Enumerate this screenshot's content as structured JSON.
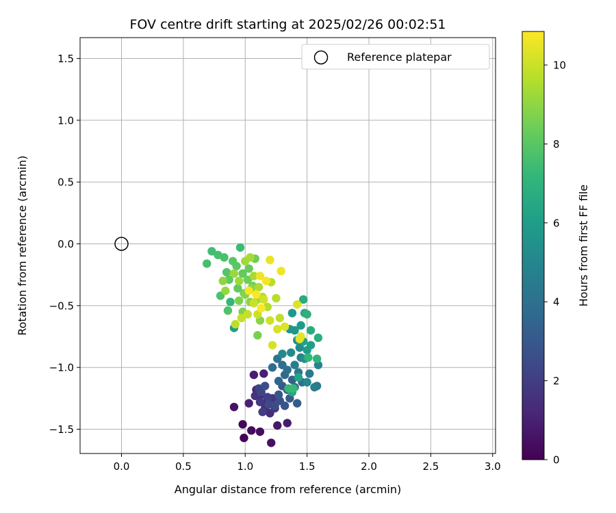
{
  "chart_data": {
    "type": "scatter",
    "title": "FOV centre drift starting at 2025/02/26 00:02:51",
    "xlabel": "Angular distance from reference (arcmin)",
    "ylabel": "Rotation from reference (arcmin)",
    "xlim": [
      -0.33,
      3.03
    ],
    "ylim": [
      -1.7,
      1.67
    ],
    "xticks": [
      "0.0",
      "0.5",
      "1.0",
      "1.5",
      "2.0",
      "2.5",
      "3.0"
    ],
    "yticks": [
      "−1.5",
      "−1.0",
      "−0.5",
      "0.0",
      "0.5",
      "1.0",
      "1.5"
    ],
    "grid": true,
    "legend": {
      "label": "Reference platepar",
      "placement": "top-right"
    },
    "reference_point": {
      "x": 0.0,
      "y": 0.0
    },
    "colorbar": {
      "label": "Hours from first FF file",
      "range": [
        0,
        10.85
      ],
      "ticks": [
        "0",
        "2",
        "4",
        "6",
        "8",
        "10"
      ],
      "colormap": "viridis",
      "colors": [
        "#440154",
        "#482878",
        "#3e4989",
        "#31688e",
        "#26828e",
        "#1f9e89",
        "#35b779",
        "#6ece58",
        "#b5de2b",
        "#fde725"
      ]
    },
    "points": [
      {
        "x": 0.99,
        "y": -1.57,
        "h": 0.1
      },
      {
        "x": 0.98,
        "y": -1.46,
        "h": 0.2
      },
      {
        "x": 1.05,
        "y": -1.51,
        "h": 0.3
      },
      {
        "x": 1.12,
        "y": -1.52,
        "h": 0.4
      },
      {
        "x": 1.21,
        "y": -1.61,
        "h": 0.5
      },
      {
        "x": 0.91,
        "y": -1.32,
        "h": 0.6
      },
      {
        "x": 1.26,
        "y": -1.47,
        "h": 0.7
      },
      {
        "x": 1.34,
        "y": -1.45,
        "h": 0.8
      },
      {
        "x": 1.07,
        "y": -1.06,
        "h": 0.9
      },
      {
        "x": 1.15,
        "y": -1.05,
        "h": 1.0
      },
      {
        "x": 1.03,
        "y": -1.29,
        "h": 1.0
      },
      {
        "x": 1.09,
        "y": -1.18,
        "h": 1.1
      },
      {
        "x": 1.13,
        "y": -1.22,
        "h": 1.2
      },
      {
        "x": 1.17,
        "y": -1.28,
        "h": 1.3
      },
      {
        "x": 1.2,
        "y": -1.37,
        "h": 1.4
      },
      {
        "x": 1.16,
        "y": -1.33,
        "h": 1.5
      },
      {
        "x": 1.08,
        "y": -1.23,
        "h": 1.6
      },
      {
        "x": 1.22,
        "y": -1.25,
        "h": 1.7
      },
      {
        "x": 1.24,
        "y": -1.33,
        "h": 1.8
      },
      {
        "x": 1.12,
        "y": -1.28,
        "h": 1.9
      },
      {
        "x": 1.14,
        "y": -1.36,
        "h": 2.0
      },
      {
        "x": 1.18,
        "y": -1.24,
        "h": 2.1
      },
      {
        "x": 1.11,
        "y": -1.17,
        "h": 2.2
      },
      {
        "x": 1.13,
        "y": -1.2,
        "h": 2.3
      },
      {
        "x": 1.19,
        "y": -1.3,
        "h": 2.4
      },
      {
        "x": 1.24,
        "y": -1.31,
        "h": 2.5
      },
      {
        "x": 1.16,
        "y": -1.15,
        "h": 2.6
      },
      {
        "x": 1.28,
        "y": -1.27,
        "h": 2.7
      },
      {
        "x": 1.32,
        "y": -1.31,
        "h": 2.8
      },
      {
        "x": 1.27,
        "y": -1.22,
        "h": 2.9
      },
      {
        "x": 1.3,
        "y": -1.15,
        "h": 3.0
      },
      {
        "x": 1.36,
        "y": -1.25,
        "h": 3.1
      },
      {
        "x": 1.42,
        "y": -1.29,
        "h": 3.2
      },
      {
        "x": 1.34,
        "y": -1.18,
        "h": 3.3
      },
      {
        "x": 1.38,
        "y": -1.1,
        "h": 3.4
      },
      {
        "x": 1.27,
        "y": -1.11,
        "h": 3.5
      },
      {
        "x": 1.32,
        "y": -1.06,
        "h": 3.6
      },
      {
        "x": 1.4,
        "y": -1.16,
        "h": 3.7
      },
      {
        "x": 1.22,
        "y": -1.0,
        "h": 3.8
      },
      {
        "x": 1.3,
        "y": -0.98,
        "h": 3.9
      },
      {
        "x": 1.34,
        "y": -1.02,
        "h": 4.0
      },
      {
        "x": 1.46,
        "y": -1.12,
        "h": 4.1
      },
      {
        "x": 1.26,
        "y": -0.93,
        "h": 4.2
      },
      {
        "x": 1.43,
        "y": -1.04,
        "h": 4.3
      },
      {
        "x": 1.52,
        "y": -1.05,
        "h": 4.4
      },
      {
        "x": 1.58,
        "y": -1.15,
        "h": 4.5
      },
      {
        "x": 1.56,
        "y": -1.16,
        "h": 4.6
      },
      {
        "x": 1.4,
        "y": -0.98,
        "h": 4.7
      },
      {
        "x": 1.45,
        "y": -0.92,
        "h": 4.8
      },
      {
        "x": 1.59,
        "y": -0.98,
        "h": 4.9
      },
      {
        "x": 1.5,
        "y": -1.12,
        "h": 5.0
      },
      {
        "x": 1.3,
        "y": -0.89,
        "h": 5.1
      },
      {
        "x": 1.37,
        "y": -0.88,
        "h": 5.2
      },
      {
        "x": 1.44,
        "y": -0.84,
        "h": 5.3
      },
      {
        "x": 1.48,
        "y": -0.93,
        "h": 5.4
      },
      {
        "x": 1.42,
        "y": -0.78,
        "h": 5.5
      },
      {
        "x": 1.36,
        "y": -0.69,
        "h": 5.6
      },
      {
        "x": 1.4,
        "y": -0.7,
        "h": 5.7
      },
      {
        "x": 1.38,
        "y": -0.56,
        "h": 5.8
      },
      {
        "x": 1.45,
        "y": -0.66,
        "h": 5.9
      },
      {
        "x": 1.5,
        "y": -0.86,
        "h": 6.0
      },
      {
        "x": 1.53,
        "y": -0.82,
        "h": 6.1
      },
      {
        "x": 1.47,
        "y": -0.79,
        "h": 6.2
      },
      {
        "x": 1.43,
        "y": -1.08,
        "h": 6.3
      },
      {
        "x": 1.38,
        "y": -1.2,
        "h": 6.4
      },
      {
        "x": 1.48,
        "y": -0.56,
        "h": 6.5
      },
      {
        "x": 1.47,
        "y": -0.45,
        "h": 6.6
      },
      {
        "x": 1.53,
        "y": -0.7,
        "h": 6.7
      },
      {
        "x": 1.59,
        "y": -0.76,
        "h": 6.8
      },
      {
        "x": 1.5,
        "y": -0.57,
        "h": 6.9
      },
      {
        "x": 1.58,
        "y": -0.93,
        "h": 7.0
      },
      {
        "x": 1.51,
        "y": -0.92,
        "h": 7.1
      },
      {
        "x": 1.35,
        "y": -1.17,
        "h": 7.2
      },
      {
        "x": 1.39,
        "y": -1.17,
        "h": 7.3
      },
      {
        "x": 0.91,
        "y": -0.68,
        "h": 6.0
      },
      {
        "x": 0.88,
        "y": -0.47,
        "h": 7.2
      },
      {
        "x": 0.96,
        "y": -0.03,
        "h": 7.4
      },
      {
        "x": 0.73,
        "y": -0.06,
        "h": 7.5
      },
      {
        "x": 0.69,
        "y": -0.16,
        "h": 7.6
      },
      {
        "x": 0.78,
        "y": -0.09,
        "h": 7.6
      },
      {
        "x": 0.83,
        "y": -0.11,
        "h": 7.7
      },
      {
        "x": 0.8,
        "y": -0.42,
        "h": 7.8
      },
      {
        "x": 0.86,
        "y": -0.54,
        "h": 7.8
      },
      {
        "x": 0.85,
        "y": -0.23,
        "h": 7.9
      },
      {
        "x": 0.9,
        "y": -0.14,
        "h": 8.0
      },
      {
        "x": 0.93,
        "y": -0.18,
        "h": 8.0
      },
      {
        "x": 0.87,
        "y": -0.29,
        "h": 8.1
      },
      {
        "x": 0.94,
        "y": -0.36,
        "h": 8.2
      },
      {
        "x": 0.98,
        "y": -0.24,
        "h": 8.2
      },
      {
        "x": 1.03,
        "y": -0.2,
        "h": 8.3
      },
      {
        "x": 1.08,
        "y": -0.12,
        "h": 8.4
      },
      {
        "x": 1.02,
        "y": -0.29,
        "h": 8.4
      },
      {
        "x": 1.06,
        "y": -0.34,
        "h": 8.5
      },
      {
        "x": 1.1,
        "y": -0.74,
        "h": 8.6
      },
      {
        "x": 0.95,
        "y": -0.46,
        "h": 8.7
      },
      {
        "x": 0.98,
        "y": -0.55,
        "h": 8.7
      },
      {
        "x": 1.0,
        "y": -0.41,
        "h": 8.8
      },
      {
        "x": 1.04,
        "y": -0.47,
        "h": 8.9
      },
      {
        "x": 1.12,
        "y": -0.62,
        "h": 8.9
      },
      {
        "x": 0.82,
        "y": -0.3,
        "h": 9.0
      },
      {
        "x": 0.84,
        "y": -0.38,
        "h": 9.1
      },
      {
        "x": 0.91,
        "y": -0.24,
        "h": 9.2
      },
      {
        "x": 0.95,
        "y": -0.3,
        "h": 9.2
      },
      {
        "x": 1.0,
        "y": -0.14,
        "h": 9.3
      },
      {
        "x": 1.04,
        "y": -0.11,
        "h": 9.4
      },
      {
        "x": 1.07,
        "y": -0.26,
        "h": 9.4
      },
      {
        "x": 1.11,
        "y": -0.35,
        "h": 9.5
      },
      {
        "x": 1.14,
        "y": -0.43,
        "h": 9.6
      },
      {
        "x": 1.18,
        "y": -0.51,
        "h": 9.6
      },
      {
        "x": 1.21,
        "y": -0.31,
        "h": 9.7
      },
      {
        "x": 1.25,
        "y": -0.44,
        "h": 9.7
      },
      {
        "x": 1.28,
        "y": -0.6,
        "h": 9.8
      },
      {
        "x": 0.92,
        "y": -0.65,
        "h": 9.8
      },
      {
        "x": 0.97,
        "y": -0.6,
        "h": 9.9
      },
      {
        "x": 1.02,
        "y": -0.57,
        "h": 9.9
      },
      {
        "x": 1.07,
        "y": -0.48,
        "h": 10.0
      },
      {
        "x": 1.1,
        "y": -0.57,
        "h": 10.0
      },
      {
        "x": 1.15,
        "y": -0.45,
        "h": 10.1
      },
      {
        "x": 1.2,
        "y": -0.62,
        "h": 10.1
      },
      {
        "x": 1.26,
        "y": -0.69,
        "h": 10.2
      },
      {
        "x": 1.22,
        "y": -0.82,
        "h": 10.2
      },
      {
        "x": 1.32,
        "y": -0.67,
        "h": 10.3
      },
      {
        "x": 1.42,
        "y": -0.49,
        "h": 10.3
      },
      {
        "x": 1.44,
        "y": -0.77,
        "h": 10.4
      },
      {
        "x": 1.45,
        "y": -0.75,
        "h": 10.4
      },
      {
        "x": 1.2,
        "y": -0.13,
        "h": 10.5
      },
      {
        "x": 1.29,
        "y": -0.22,
        "h": 10.6
      },
      {
        "x": 1.12,
        "y": -0.26,
        "h": 10.6
      },
      {
        "x": 1.17,
        "y": -0.3,
        "h": 10.7
      },
      {
        "x": 1.03,
        "y": -0.38,
        "h": 10.7
      },
      {
        "x": 1.09,
        "y": -0.41,
        "h": 10.8
      },
      {
        "x": 1.13,
        "y": -0.52,
        "h": 10.8
      },
      {
        "x": 0.99,
        "y": -0.4,
        "h": 8.6
      },
      {
        "x": 1.05,
        "y": -0.36,
        "h": 9.0
      },
      {
        "x": 1.1,
        "y": -0.45,
        "h": 9.3
      }
    ]
  }
}
